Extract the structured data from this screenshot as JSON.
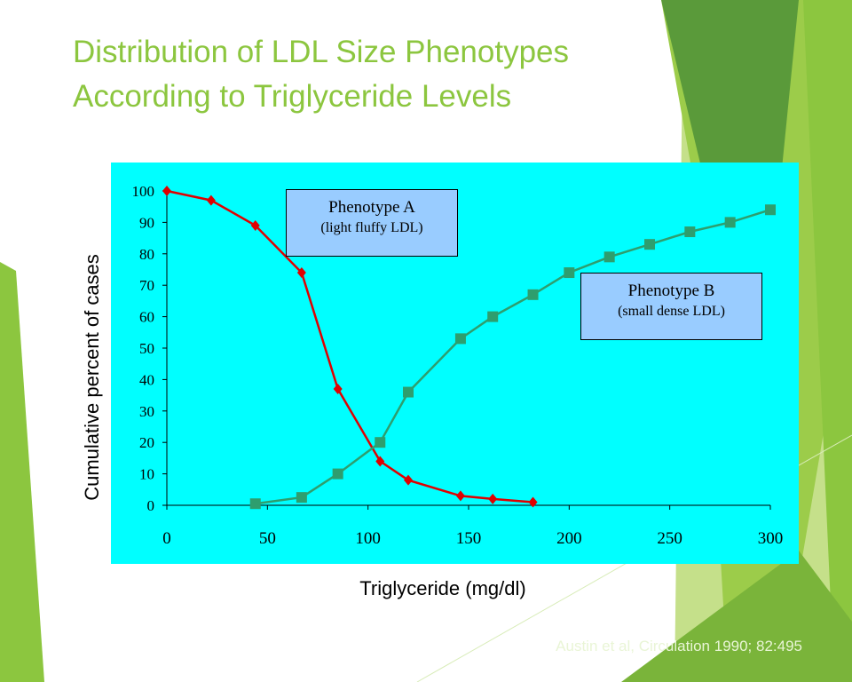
{
  "slide": {
    "title_line1": "Distribution of LDL Size Phenotypes",
    "title_line2": "According to Triglyceride Levels",
    "citation": "Austin et al, Circulation 1990; 82:495"
  },
  "colors": {
    "title": "#8cc63f",
    "plot_background": "#00ffff",
    "series_a": "#e00000",
    "series_b": "#2e9e6e",
    "annotation_fill": "#99ccff",
    "decor_light": "#c5e08a",
    "decor_mid": "#8cc63f",
    "decor_dark": "#5a9a3a"
  },
  "chart_data": {
    "type": "line",
    "title": "",
    "xlabel": "Triglyceride (mg/dl)",
    "ylabel": "Cumulative percent of cases",
    "xlim": [
      0,
      300
    ],
    "ylim": [
      0,
      100
    ],
    "x_ticks": [
      "0",
      "50",
      "100",
      "150",
      "200",
      "250",
      "300"
    ],
    "y_ticks": [
      "0",
      "10",
      "20",
      "30",
      "40",
      "50",
      "60",
      "70",
      "80",
      "90",
      "100"
    ],
    "grid": false,
    "series": [
      {
        "marker": "diamond",
        "points": [
          [
            0,
            100
          ],
          [
            22,
            97
          ],
          [
            44,
            89
          ],
          [
            67,
            74
          ],
          [
            85,
            37
          ],
          [
            106,
            14
          ],
          [
            120,
            8
          ],
          [
            146,
            3
          ],
          [
            162,
            2
          ],
          [
            182,
            1
          ]
        ]
      },
      {
        "marker": "square",
        "points": [
          [
            44,
            0.5
          ],
          [
            67,
            2.5
          ],
          [
            85,
            10
          ],
          [
            106,
            20
          ],
          [
            120,
            36
          ],
          [
            146,
            53
          ],
          [
            162,
            60
          ],
          [
            182,
            67
          ],
          [
            200,
            74
          ],
          [
            220,
            79
          ],
          [
            240,
            83
          ],
          [
            260,
            87
          ],
          [
            280,
            90
          ],
          [
            300,
            94
          ]
        ]
      }
    ],
    "annotations": [
      {
        "line1": "Phenotype A",
        "line2": "(light fluffy LDL)"
      },
      {
        "line1": "Phenotype B",
        "line2": "(small dense LDL)"
      }
    ]
  }
}
